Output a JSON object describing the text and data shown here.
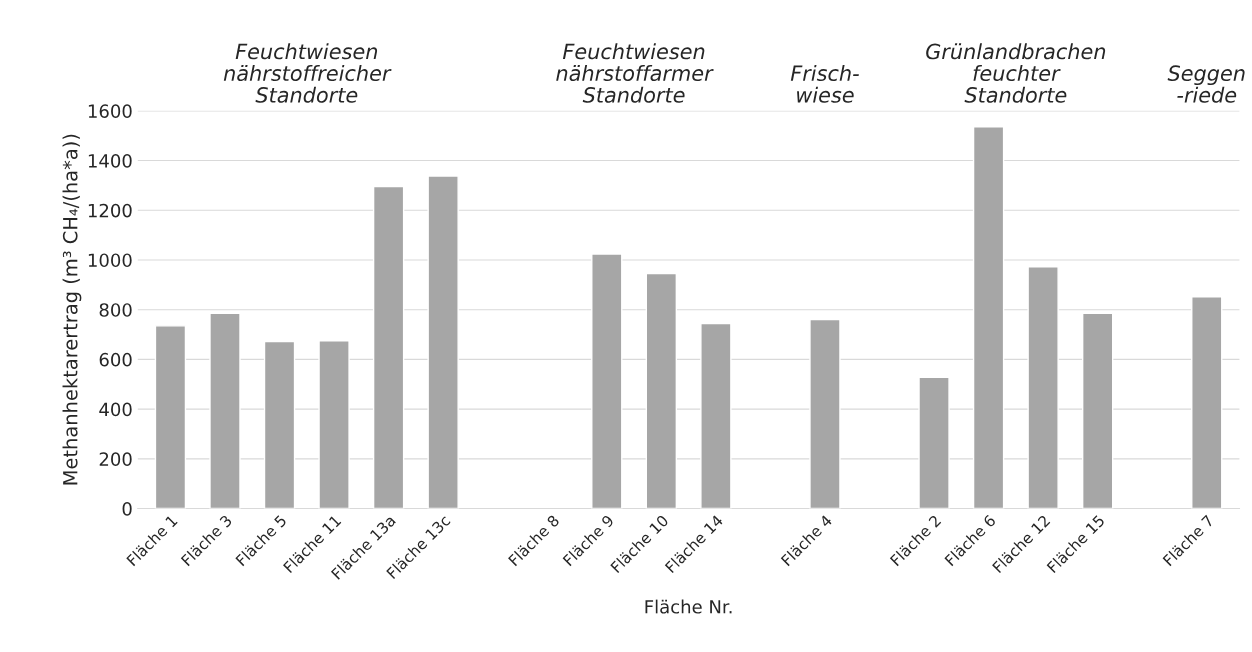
{
  "chart_data": {
    "type": "bar",
    "categories": [
      "Fläche 1",
      "Fläche 3",
      "Fläche 5",
      "Fläche 11",
      "Fläche 13a",
      "Fläche 13c",
      null,
      "Fläche 8",
      "Fläche 9",
      "Fläche 10",
      "Fläche 14",
      null,
      "Fläche 4",
      null,
      "Fläche 2",
      "Fläche 6",
      "Fläche 12",
      "Fläche 15",
      null,
      "Fläche 7"
    ],
    "values": [
      735,
      785,
      672,
      675,
      1295,
      1338,
      null,
      null,
      1024,
      945,
      744,
      null,
      760,
      null,
      528,
      1536,
      973,
      785,
      null,
      852
    ],
    "color": "#a6a6a6",
    "xlabel": "Fläche Nr.",
    "ylabel": "Methanhektarertrag (m³ CH₄/(ha*a))",
    "ylim": [
      0,
      1600
    ],
    "yticks": [
      0,
      200,
      400,
      600,
      800,
      1000,
      1200,
      1400,
      1600
    ],
    "grid": "y",
    "annotations": [
      "Feuchtwiesen\nnährstoffreicher\nStandorte",
      "Feuchtwiesen\nnährstoffarmer\nStandorte",
      "Frisch-\nwiese",
      "Grünlandbrachen\nfeuchter\nStandorte",
      "Seggen\n-riede"
    ]
  }
}
